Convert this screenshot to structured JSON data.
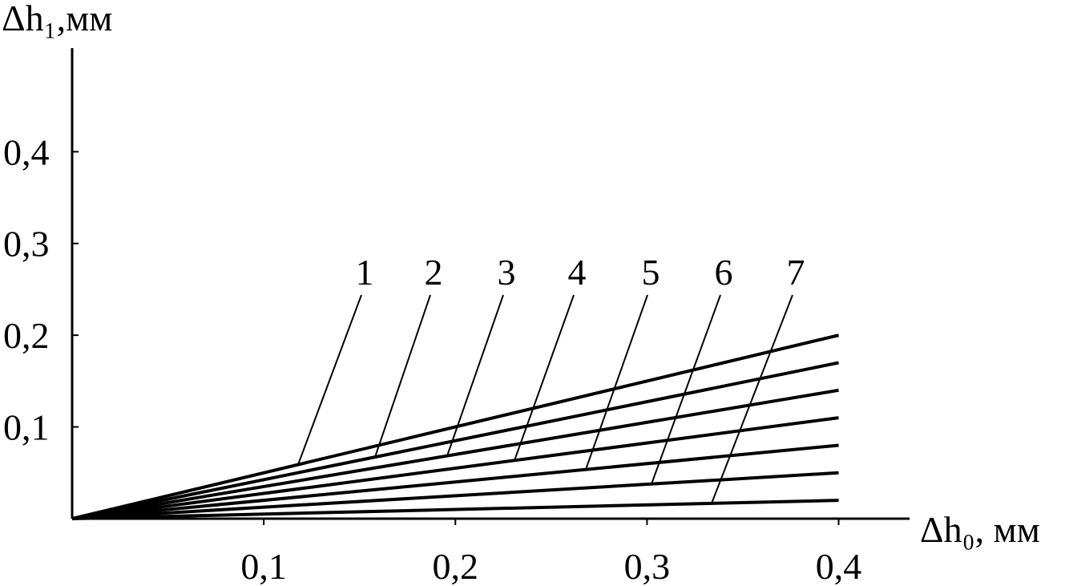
{
  "chart_data": {
    "type": "line",
    "x_label": "Δh₀, мм",
    "y_label": "Δh₁,мм",
    "x": [
      0,
      0.4
    ],
    "series": [
      {
        "name": "1",
        "color": "#000000",
        "values": [
          0,
          0.2
        ]
      },
      {
        "name": "2",
        "color": "#000000",
        "values": [
          0,
          0.17
        ]
      },
      {
        "name": "3",
        "color": "#000000",
        "values": [
          0,
          0.14
        ]
      },
      {
        "name": "4",
        "color": "#000000",
        "values": [
          0,
          0.11
        ]
      },
      {
        "name": "5",
        "color": "#000000",
        "values": [
          0,
          0.08
        ]
      },
      {
        "name": "6",
        "color": "#000000",
        "values": [
          0,
          0.05
        ]
      },
      {
        "name": "7",
        "color": "#000000",
        "values": [
          0,
          0.02
        ]
      }
    ],
    "xlim": [
      0,
      0.437
    ],
    "ylim": [
      0,
      0.513
    ],
    "xticks": [
      {
        "value": 0.1,
        "label": "0,1"
      },
      {
        "value": 0.2,
        "label": "0,2"
      },
      {
        "value": 0.3,
        "label": "0,3"
      },
      {
        "value": 0.4,
        "label": "0,4"
      }
    ],
    "yticks": [
      {
        "value": 0.1,
        "label": "0,1"
      },
      {
        "value": 0.2,
        "label": "0,2"
      },
      {
        "value": 0.3,
        "label": "0,3"
      },
      {
        "value": 0.4,
        "label": "0,4"
      }
    ],
    "grid": false
  }
}
